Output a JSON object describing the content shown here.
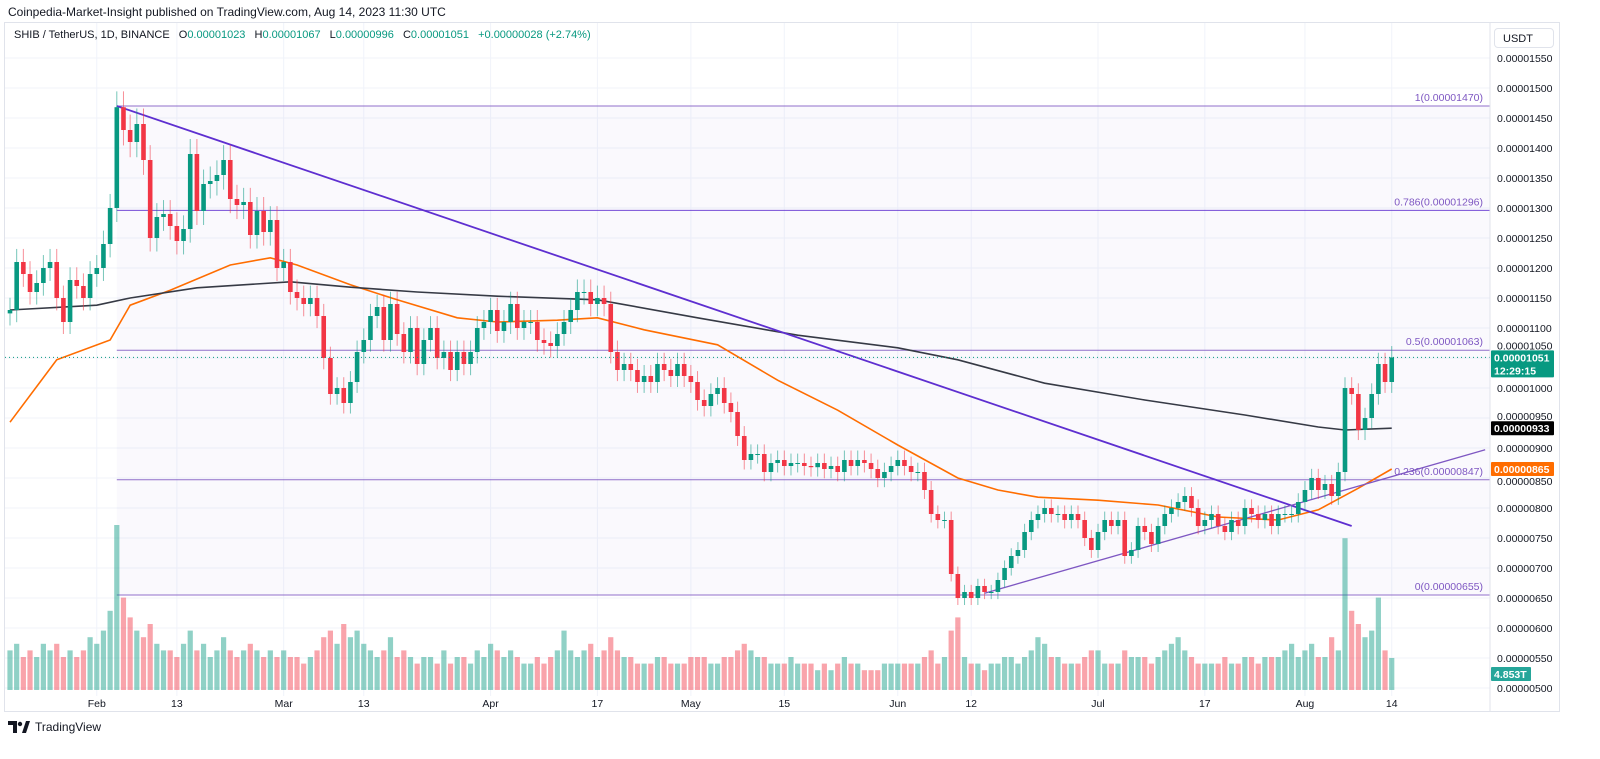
{
  "header": {
    "published": "Coinpedia-Market-Insight published on TradingView.com, Aug 14, 2023 11:30 UTC",
    "symbol": "SHIB / TetherUS, 1D, BINANCE",
    "open_label": "O",
    "open": "0.00001023",
    "high_label": "H",
    "high": "0.00001067",
    "low_label": "L",
    "low": "0.00000996",
    "close_label": "C",
    "close": "0.00001051",
    "change": "+0.00000028 (+2.74%)"
  },
  "currency_button": "USDT",
  "footer": {
    "logo_text": "TradingView",
    "logo_icon": "tradingview-logo-icon"
  },
  "colors": {
    "up": "#089981",
    "down": "#f23645",
    "fib": "#7e57c2",
    "trendline": "#5e2fd0",
    "ma_short": "#ff6d00",
    "ma_long": "#363a45"
  },
  "chart_data": {
    "type": "candlestick",
    "title": "",
    "start_date": "2023-01-19",
    "interval": "1D",
    "ylim": [
      4.8e-06,
      1.58e-05
    ],
    "grid": true,
    "price_ticks": [
      "0.00001550",
      "0.00001500",
      "0.00001450",
      "0.00001400",
      "0.00001350",
      "0.00001300",
      "0.00001250",
      "0.00001200",
      "0.00001150",
      "0.00001100",
      "0.00001050",
      "0.00001000",
      "0.00000950",
      "0.00000900",
      "0.00000850",
      "0.00000800",
      "0.00000750",
      "0.00000700",
      "0.00000650",
      "0.00000600",
      "0.00000550",
      "0.00000500"
    ],
    "time_ticks": [
      {
        "date": "2023-02-01",
        "label": "Feb"
      },
      {
        "date": "2023-02-13",
        "label": "13"
      },
      {
        "date": "2023-03-01",
        "label": "Mar"
      },
      {
        "date": "2023-03-13",
        "label": "13"
      },
      {
        "date": "2023-04-01",
        "label": "Apr"
      },
      {
        "date": "2023-04-17",
        "label": "17"
      },
      {
        "date": "2023-05-01",
        "label": "May"
      },
      {
        "date": "2023-05-15",
        "label": "15"
      },
      {
        "date": "2023-06-01",
        "label": "Jun"
      },
      {
        "date": "2023-06-12",
        "label": "12"
      },
      {
        "date": "2023-07-01",
        "label": "Jul"
      },
      {
        "date": "2023-07-17",
        "label": "17"
      },
      {
        "date": "2023-08-01",
        "label": "Aug"
      },
      {
        "date": "2023-08-14",
        "label": "14"
      }
    ],
    "closes": [
      1.13e-05,
      1.21e-05,
      1.19e-05,
      1.16e-05,
      1.175e-05,
      1.2e-05,
      1.21e-05,
      1.15e-05,
      1.11e-05,
      1.18e-05,
      1.17e-05,
      1.15e-05,
      1.19e-05,
      1.2e-05,
      1.24e-05,
      1.3e-05,
      1.468e-05,
      1.43e-05,
      1.41e-05,
      1.44e-05,
      1.38e-05,
      1.25e-05,
      1.285e-05,
      1.29e-05,
      1.27e-05,
      1.245e-05,
      1.265e-05,
      1.39e-05,
      1.295e-05,
      1.34e-05,
      1.345e-05,
      1.355e-05,
      1.38e-05,
      1.315e-05,
      1.305e-05,
      1.31e-05,
      1.255e-05,
      1.295e-05,
      1.26e-05,
      1.28e-05,
      1.2e-05,
      1.21e-05,
      1.16e-05,
      1.15e-05,
      1.14e-05,
      1.15e-05,
      1.12e-05,
      1.05e-05,
      9.9e-06,
      1e-05,
      9.75e-06,
      1.01e-05,
      1.06e-05,
      1.08e-05,
      1.12e-05,
      1.135e-05,
      1.08e-05,
      1.14e-05,
      1.09e-05,
      1.06e-05,
      1.1e-05,
      1.04e-05,
      1.08e-05,
      1.1e-05,
      1.05e-05,
      1.06e-05,
      1.03e-05,
      1.06e-05,
      1.04e-05,
      1.06e-05,
      1.1e-05,
      1.11e-05,
      1.13e-05,
      1.095e-05,
      1.11e-05,
      1.14e-05,
      1.1e-05,
      1.11e-05,
      1.11e-05,
      1.08e-05,
      1.075e-05,
      1.07e-05,
      1.09e-05,
      1.11e-05,
      1.13e-05,
      1.16e-05,
      1.16e-05,
      1.14e-05,
      1.15e-05,
      1.14e-05,
      1.06e-05,
      1.03e-05,
      1.04e-05,
      1.03e-05,
      1.01e-05,
      1.02e-05,
      1.01e-05,
      1.04e-05,
      1.03e-05,
      1.02e-05,
      1.04e-05,
      1.02e-05,
      1.01e-05,
      9.8e-06,
      9.7e-06,
      9.9e-06,
      1e-05,
      9.75e-06,
      9.6e-06,
      9.2e-06,
      8.8e-06,
      8.9e-06,
      8.9e-06,
      8.6e-06,
      8.75e-06,
      8.8e-06,
      8.7e-06,
      8.75e-06,
      8.75e-06,
      8.7e-06,
      8.68e-06,
      8.75e-06,
      8.65e-06,
      8.7e-06,
      8.6e-06,
      8.8e-06,
      8.7e-06,
      8.8e-06,
      8.75e-06,
      8.65e-06,
      8.5e-06,
      8.6e-06,
      8.7e-06,
      8.8e-06,
      8.7e-06,
      8.6e-06,
      8.6e-06,
      8.3e-06,
      7.9e-06,
      7.8e-06,
      7.8e-06,
      6.9e-06,
      6.5e-06,
      6.6e-06,
      6.5e-06,
      6.7e-06,
      6.6e-06,
      6.6e-06,
      6.8e-06,
      7e-06,
      7.2e-06,
      7.3e-06,
      7.6e-06,
      7.8e-06,
      7.9e-06,
      8e-06,
      7.9e-06,
      7.9e-06,
      7.8e-06,
      7.9e-06,
      7.8e-06,
      7.5e-06,
      7.3e-06,
      7.6e-06,
      7.8e-06,
      7.7e-06,
      7.8e-06,
      7.2e-06,
      7.3e-06,
      7.7e-06,
      7.6e-06,
      7.4e-06,
      7.7e-06,
      7.9e-06,
      8e-06,
      8.1e-06,
      8.2e-06,
      8e-06,
      7.7e-06,
      7.8e-06,
      7.9e-06,
      7.7e-06,
      7.6e-06,
      7.8e-06,
      7.7e-06,
      8e-06,
      7.9e-06,
      7.8e-06,
      7.9e-06,
      7.7e-06,
      7.9e-06,
      7.9e-06,
      7.9e-06,
      8.1e-06,
      8.3e-06,
      8.5e-06,
      8.3e-06,
      8.4e-06,
      8.2e-06,
      8.6e-06,
      1e-05,
      9.9e-06,
      9.3e-06,
      9.5e-06,
      9.9e-06,
      1.04e-05,
      1.01e-05,
      1.051e-05
    ],
    "volume_T": [
      6,
      7,
      5,
      6,
      5,
      7,
      6,
      7,
      5,
      6,
      5,
      6,
      8,
      7,
      9,
      12,
      25,
      14,
      11,
      9,
      8,
      10,
      7,
      6,
      6,
      5,
      7,
      9,
      6,
      7,
      5,
      6,
      8,
      6,
      5,
      6,
      7,
      6,
      5,
      6,
      5,
      6,
      5,
      5,
      4,
      5,
      6,
      8,
      9,
      7,
      10,
      8,
      9,
      7,
      6,
      5,
      6,
      8,
      5,
      6,
      5,
      4,
      5,
      5,
      4,
      6,
      4,
      5,
      5,
      4,
      6,
      5,
      7,
      6,
      5,
      6,
      5,
      4,
      4,
      5,
      4,
      5,
      6,
      9,
      6,
      5,
      6,
      7,
      5,
      6,
      8,
      6,
      5,
      5,
      4,
      4,
      4,
      5,
      5,
      4,
      4,
      4,
      5,
      5,
      5,
      4,
      4,
      5,
      5,
      6,
      7,
      6,
      5,
      5,
      4,
      4,
      4,
      5,
      4,
      4,
      4,
      3,
      4,
      3,
      4,
      5,
      4,
      4,
      3,
      3,
      3,
      4,
      4,
      4,
      4,
      4,
      4,
      5,
      6,
      4,
      5,
      9,
      11,
      5,
      4,
      4,
      3,
      4,
      4,
      5,
      5,
      4,
      5,
      6,
      8,
      7,
      5,
      5,
      4,
      4,
      4,
      5,
      6,
      6,
      4,
      4,
      4,
      6,
      5,
      5,
      5,
      4,
      5,
      6,
      7,
      8,
      6,
      5,
      4,
      4,
      4,
      4,
      5,
      4,
      4,
      5,
      5,
      4,
      5,
      5,
      5,
      6,
      7,
      5,
      6,
      7,
      5,
      5,
      8,
      6,
      23,
      12,
      10,
      8,
      9,
      14,
      6,
      4.853
    ],
    "moving_averages": [
      {
        "color": "#ff6d00",
        "last_value": "0.00000865",
        "points": [
          [
            "2023-01-19",
            9.43e-06
          ],
          [
            "2023-01-26",
            1.047e-05
          ],
          [
            "2023-02-03",
            1.08e-05
          ],
          [
            "2023-02-06",
            1.138e-05
          ],
          [
            "2023-02-12",
            1.163e-05
          ],
          [
            "2023-02-21",
            1.205e-05
          ],
          [
            "2023-02-27",
            1.217e-05
          ],
          [
            "2023-03-03",
            1.205e-05
          ],
          [
            "2023-03-11",
            1.172e-05
          ],
          [
            "2023-03-18",
            1.147e-05
          ],
          [
            "2023-03-27",
            1.117e-05
          ],
          [
            "2023-04-02",
            1.11e-05
          ],
          [
            "2023-04-11",
            1.113e-05
          ],
          [
            "2023-04-17",
            1.117e-05
          ],
          [
            "2023-04-24",
            1.097e-05
          ],
          [
            "2023-05-05",
            1.072e-05
          ],
          [
            "2023-05-14",
            1.013e-05
          ],
          [
            "2023-05-23",
            9.63e-06
          ],
          [
            "2023-06-01",
            9.05e-06
          ],
          [
            "2023-06-10",
            8.5e-06
          ],
          [
            "2023-06-16",
            8.3e-06
          ],
          [
            "2023-06-22",
            8.18e-06
          ],
          [
            "2023-07-01",
            8.13e-06
          ],
          [
            "2023-07-10",
            8.05e-06
          ],
          [
            "2023-07-19",
            7.85e-06
          ],
          [
            "2023-07-28",
            7.8e-06
          ],
          [
            "2023-08-03",
            7.97e-06
          ],
          [
            "2023-08-09",
            8.33e-06
          ],
          [
            "2023-08-14",
            8.65e-06
          ]
        ]
      },
      {
        "color": "#363a45",
        "last_value": "0.00000933",
        "points": [
          [
            "2023-01-19",
            1.13e-05
          ],
          [
            "2023-02-01",
            1.138e-05
          ],
          [
            "2023-02-06",
            1.15e-05
          ],
          [
            "2023-02-16",
            1.167e-05
          ],
          [
            "2023-03-02",
            1.177e-05
          ],
          [
            "2023-03-11",
            1.168e-05
          ],
          [
            "2023-03-21",
            1.16e-05
          ],
          [
            "2023-04-02",
            1.153e-05
          ],
          [
            "2023-04-17",
            1.147e-05
          ],
          [
            "2023-05-02",
            1.117e-05
          ],
          [
            "2023-05-17",
            1.088e-05
          ],
          [
            "2023-06-01",
            1.067e-05
          ],
          [
            "2023-06-10",
            1.047e-05
          ],
          [
            "2023-06-23",
            1.008e-05
          ],
          [
            "2023-07-08",
            9.8e-06
          ],
          [
            "2023-07-23",
            9.55e-06
          ],
          [
            "2023-08-03",
            9.35e-06
          ],
          [
            "2023-08-07",
            9.3e-06
          ],
          [
            "2023-08-14",
            9.33e-06
          ]
        ]
      }
    ],
    "fib_levels": [
      {
        "ratio": "1",
        "value": 1.47e-05,
        "label": "1(0.00001470)"
      },
      {
        "ratio": "0.786",
        "value": 1.296e-05,
        "label": "0.786(0.00001296)"
      },
      {
        "ratio": "0.5",
        "value": 1.063e-05,
        "label": "0.5(0.00001063)"
      },
      {
        "ratio": "0.236",
        "value": 8.47e-06,
        "label": "0.236(0.00000847)"
      },
      {
        "ratio": "0",
        "value": 6.55e-06,
        "label": "0(0.00000655)"
      }
    ],
    "fib_start_date": "2023-02-04",
    "trendlines": [
      {
        "from": [
          "2023-02-04",
          1.47e-05
        ],
        "to": [
          "2023-08-08",
          7.7e-06
        ]
      },
      {
        "from": [
          "2023-06-14",
          6.58e-06
        ],
        "to": [
          "2023-08-28",
          8.97e-06
        ]
      }
    ],
    "last_price": {
      "value": "0.00001051",
      "countdown": "12:29:15"
    },
    "last_volume": "4.853T"
  }
}
